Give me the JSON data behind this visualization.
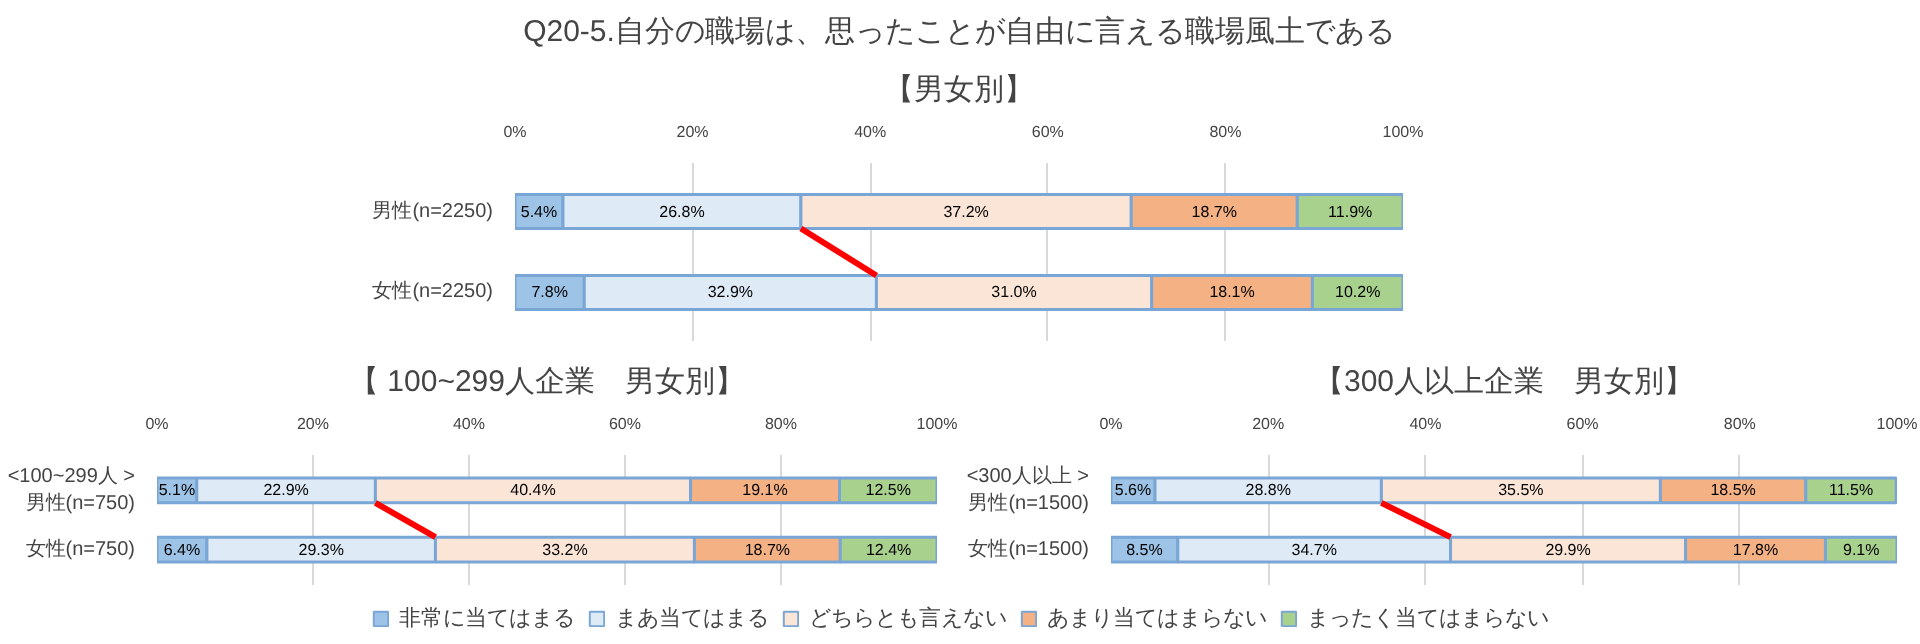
{
  "chart_data": [
    {
      "type": "bar",
      "orientation": "horizontal",
      "stacked": true,
      "title": "Q20-5.自分の職場は、思ったことが自由に言える職場風土である",
      "subtitle": "【男女別】",
      "categories": [
        "男性(n=2250)",
        "女性(n=2250)"
      ],
      "series": [
        {
          "color": "#9dc3e6",
          "values": [
            5.4,
            7.8
          ],
          "value_labels": [
            "5.4%",
            "7.8%"
          ]
        },
        {
          "color": "#deebf7",
          "values": [
            26.8,
            32.9
          ],
          "value_labels": [
            "26.8%",
            "32.9%"
          ]
        },
        {
          "color": "#fbe5d6",
          "values": [
            37.2,
            31.0
          ],
          "value_labels": [
            "37.2%",
            "31.0%"
          ]
        },
        {
          "color": "#f4b183",
          "values": [
            18.7,
            18.1
          ],
          "value_labels": [
            "18.7%",
            "18.1%"
          ]
        },
        {
          "color": "#a9d18e",
          "values": [
            11.9,
            10.2
          ],
          "value_labels": [
            "11.9%",
            "10.2%"
          ]
        }
      ],
      "xlim": [
        0,
        100
      ],
      "xticks": [
        {
          "value": 0,
          "label": "0%"
        },
        {
          "value": 20,
          "label": "20%"
        },
        {
          "value": 40,
          "label": "40%"
        },
        {
          "value": 60,
          "label": "60%"
        },
        {
          "value": 80,
          "label": "80%"
        },
        {
          "value": 100,
          "label": "100%"
        }
      ],
      "grid": "x"
    },
    {
      "type": "bar",
      "orientation": "horizontal",
      "stacked": true,
      "title": "【 100~299人企業　男女別】",
      "categories": [
        "<100~299人 >\n男性(n=750)",
        "女性(n=750)"
      ],
      "series": [
        {
          "color": "#9dc3e6",
          "values": [
            5.1,
            6.4
          ],
          "value_labels": [
            "5.1%",
            "6.4%"
          ]
        },
        {
          "color": "#deebf7",
          "values": [
            22.9,
            29.3
          ],
          "value_labels": [
            "22.9%",
            "29.3%"
          ]
        },
        {
          "color": "#fbe5d6",
          "values": [
            40.4,
            33.2
          ],
          "value_labels": [
            "40.4%",
            "33.2%"
          ]
        },
        {
          "color": "#f4b183",
          "values": [
            19.1,
            18.7
          ],
          "value_labels": [
            "19.1%",
            "18.7%"
          ]
        },
        {
          "color": "#a9d18e",
          "values": [
            12.5,
            12.4
          ],
          "value_labels": [
            "12.5%",
            "12.4%"
          ]
        }
      ],
      "xlim": [
        0,
        100
      ],
      "xticks": [
        {
          "value": 0,
          "label": "0%"
        },
        {
          "value": 20,
          "label": "20%"
        },
        {
          "value": 40,
          "label": "40%"
        },
        {
          "value": 60,
          "label": "60%"
        },
        {
          "value": 80,
          "label": "80%"
        },
        {
          "value": 100,
          "label": "100%"
        }
      ],
      "grid": "x"
    },
    {
      "type": "bar",
      "orientation": "horizontal",
      "stacked": true,
      "title": "【300人以上企業　男女別】",
      "categories": [
        "<300人以上 >\n男性(n=1500)",
        "女性(n=1500)"
      ],
      "series": [
        {
          "name": "非常に当てはまる",
          "color": "#9dc3e6",
          "values": [
            5.6,
            8.5
          ],
          "value_labels": [
            "5.6%",
            "8.5%"
          ]
        },
        {
          "name": "まあ当てはまる",
          "color": "#deebf7",
          "values": [
            28.8,
            34.7
          ],
          "value_labels": [
            "28.8%",
            "34.7%"
          ]
        },
        {
          "name": "どちらとも言えない",
          "color": "#fbe5d6",
          "values": [
            35.5,
            29.9
          ],
          "value_labels": [
            "35.5%",
            "29.9%"
          ]
        },
        {
          "name": "あまり当てはまらない",
          "color": "#f4b183",
          "values": [
            18.5,
            17.8
          ],
          "value_labels": [
            "18.5%",
            "17.8%"
          ]
        },
        {
          "name": "まったく当てはまらない",
          "color": "#a9d18e",
          "values": [
            11.5,
            9.1
          ],
          "value_labels": [
            "11.5%",
            "9.1%"
          ]
        }
      ],
      "xlim": [
        0,
        100
      ],
      "xticks": [
        {
          "value": 0,
          "label": "0%"
        },
        {
          "value": 20,
          "label": "20%"
        },
        {
          "value": 40,
          "label": "40%"
        },
        {
          "value": 60,
          "label": "60%"
        },
        {
          "value": 80,
          "label": "80%"
        },
        {
          "value": 100,
          "label": "100%"
        }
      ],
      "grid": "x",
      "legend": "bottom"
    }
  ]
}
